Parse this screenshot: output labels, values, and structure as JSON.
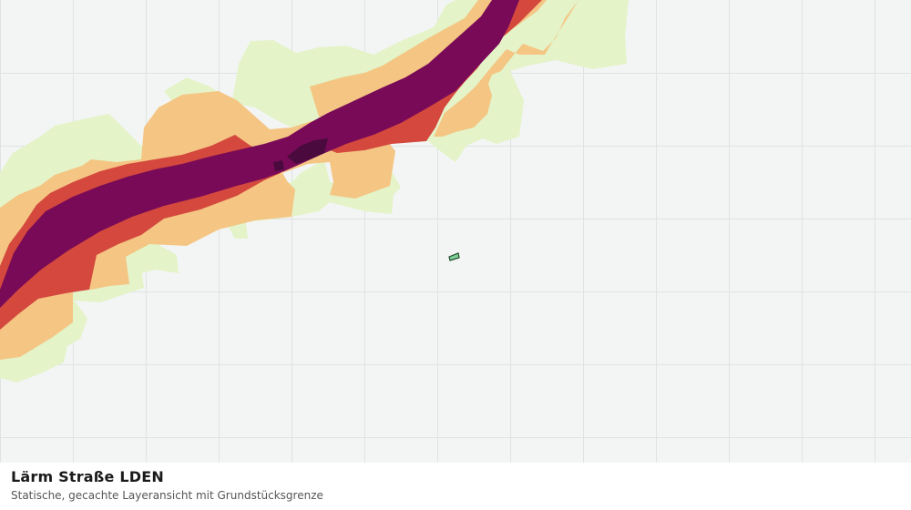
{
  "map": {
    "layer_title": "Lärm Straße LDEN",
    "subtitle": "Statische, gecachte Layeransicht mit Grundstücksgrenze",
    "colors": {
      "background": "#f3f5f4",
      "grid": "#dfe3e1",
      "zone_light_green": "#e4f3c8",
      "zone_orange": "#f4c583",
      "zone_red": "#d4483e",
      "zone_purple": "#780a57",
      "zone_dark": "#4a0a3e",
      "parcel_fill": "#7fcf9a",
      "parcel_stroke": "#1e4a2a"
    }
  }
}
